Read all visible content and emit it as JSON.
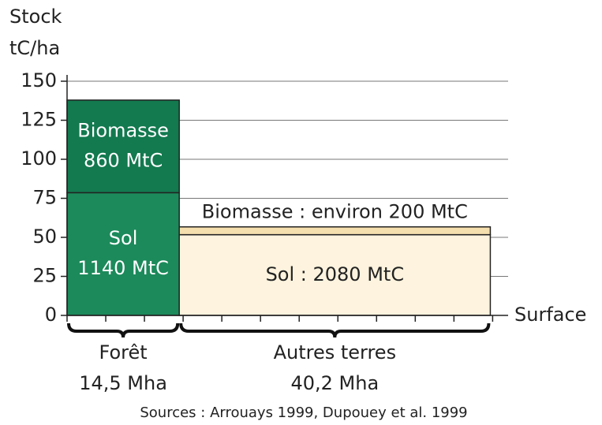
{
  "chart_data": {
    "type": "mekko",
    "y_label_lines": [
      "Stock",
      "tC/ha"
    ],
    "x_label": "Surface",
    "source": "Sources : Arrouays 1999, Dupouey et al. 1999",
    "categories": [
      "Forêt",
      "Autres terres"
    ],
    "widths": [
      14.5,
      40.2
    ],
    "width_labels": [
      "14,5 Mha",
      "40,2 Mha"
    ],
    "series": [
      {
        "colors": [
          "#1c8a5b",
          "#fdf3de"
        ],
        "values": [
          78.6,
          51.7
        ],
        "segment_labels": [
          [
            "Sol",
            "1140 MtC"
          ],
          [
            "Sol : 2080 MtC"
          ]
        ]
      },
      {
        "colors": [
          "#13794f",
          "#f6dfae"
        ],
        "values": [
          59.3,
          5.0
        ],
        "segment_labels": [
          [
            "Biomasse",
            "860 MtC"
          ],
          [
            "Biomasse : environ 200 MtC"
          ]
        ]
      }
    ],
    "label_colors": [
      "#ffffff",
      "#222222"
    ],
    "ylim": [
      0,
      150
    ],
    "yticks": [
      0,
      25,
      50,
      75,
      100,
      125,
      150
    ],
    "xlim": [
      0,
      57
    ],
    "xticks": [
      0,
      5,
      10,
      15,
      20,
      25,
      30,
      35,
      40,
      45,
      50,
      55
    ],
    "grid": true
  }
}
